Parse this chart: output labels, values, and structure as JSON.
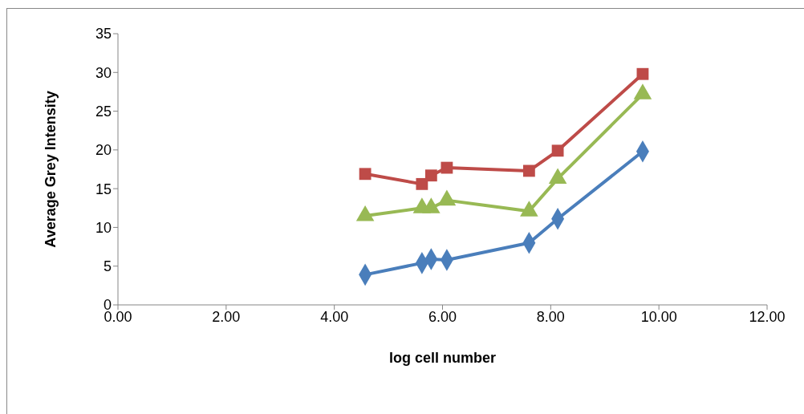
{
  "chart_data": {
    "type": "line",
    "xlabel": "log cell number",
    "ylabel": "Average Grey Intensity",
    "x": [
      4.57,
      5.62,
      5.79,
      6.08,
      7.6,
      8.13,
      9.7
    ],
    "xlim": [
      0,
      12
    ],
    "xticks": [
      {
        "value": 0,
        "label": "0.00"
      },
      {
        "value": 2,
        "label": "2.00"
      },
      {
        "value": 4,
        "label": "4.00"
      },
      {
        "value": 6,
        "label": "6.00"
      },
      {
        "value": 8,
        "label": "8.00"
      },
      {
        "value": 10,
        "label": "10.00"
      },
      {
        "value": 12,
        "label": "12.00"
      }
    ],
    "ylim": [
      0,
      35
    ],
    "yticks": [
      0,
      5,
      10,
      15,
      20,
      25,
      30,
      35
    ],
    "grid": false,
    "series": [
      {
        "color": "#4a7ebb",
        "marker": "diamond",
        "values": [
          3.9,
          5.4,
          5.9,
          5.8,
          8.0,
          11.1,
          19.8
        ]
      },
      {
        "color": "#be4b48",
        "marker": "square",
        "values": [
          16.9,
          15.6,
          16.7,
          17.7,
          17.3,
          19.9,
          29.8
        ]
      },
      {
        "color": "#98b954",
        "marker": "triangle",
        "values": [
          11.5,
          12.5,
          12.5,
          13.5,
          12.1,
          16.3,
          27.2
        ]
      }
    ]
  }
}
